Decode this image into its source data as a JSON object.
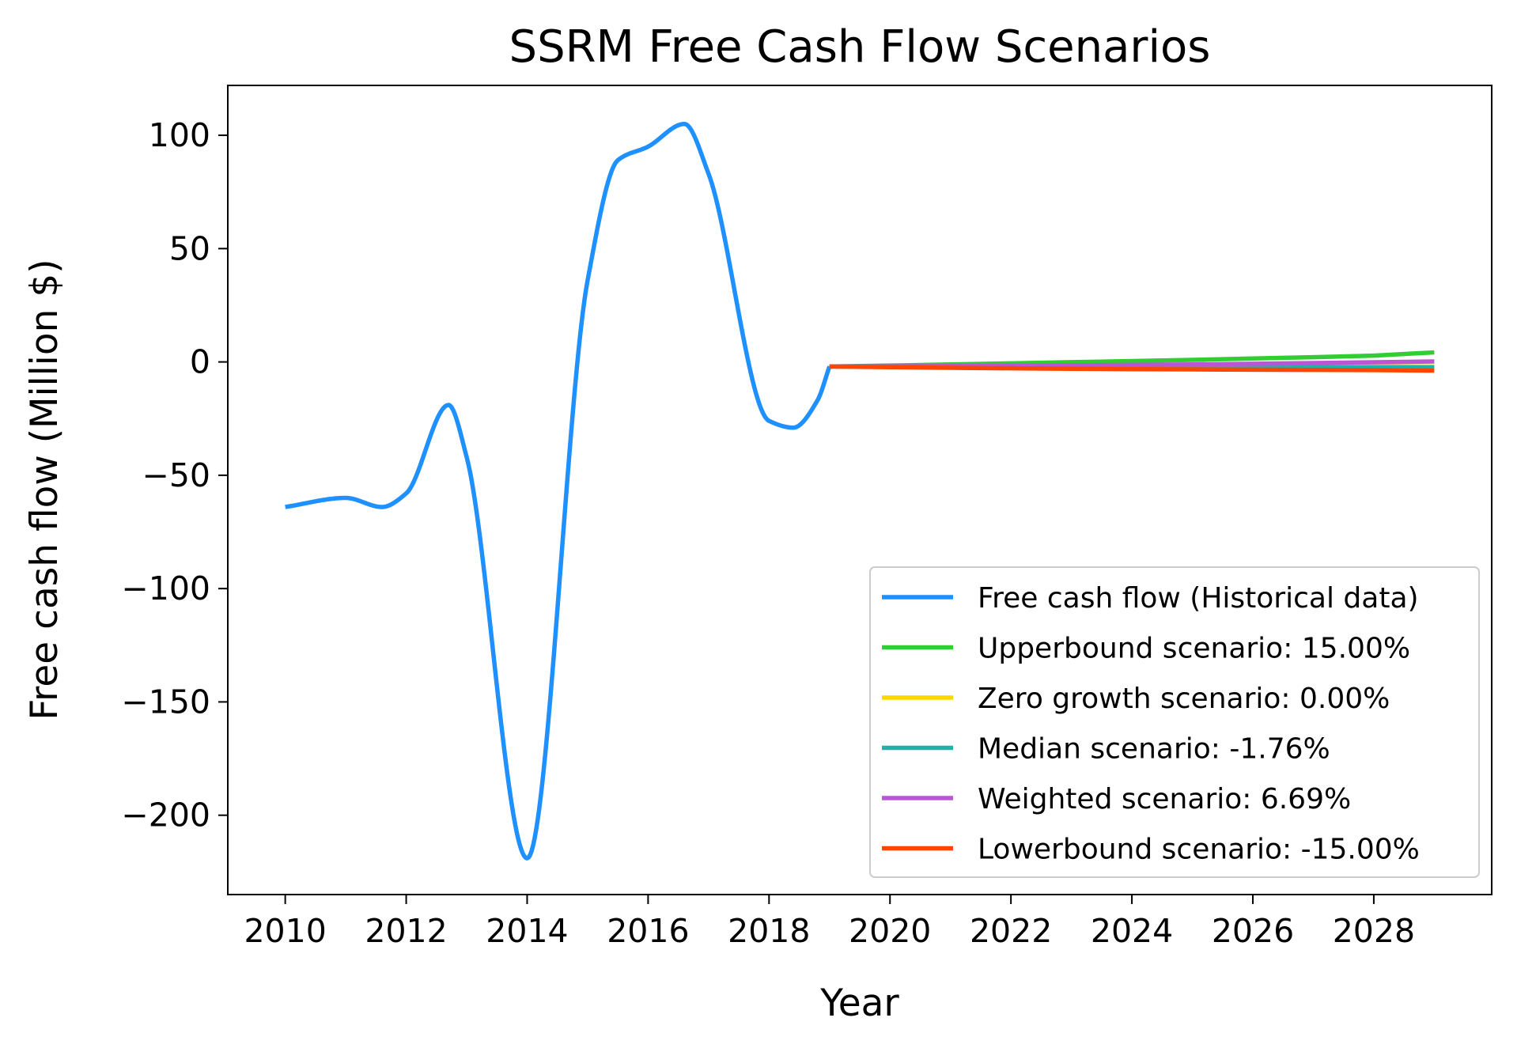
{
  "chart_data": {
    "type": "line",
    "title": "SSRM Free Cash Flow Scenarios",
    "xlabel": "Year",
    "ylabel": "Free cash flow (Million $)",
    "xlim": [
      2009.05,
      2029.95
    ],
    "ylim": [
      -235,
      122
    ],
    "xticks": [
      2010,
      2012,
      2014,
      2016,
      2018,
      2020,
      2022,
      2024,
      2026,
      2028
    ],
    "yticks": [
      100,
      50,
      0,
      -50,
      -100,
      -150,
      -200
    ],
    "ytick_labels": [
      "100",
      "50",
      "0",
      "−50",
      "−100",
      "−150",
      "−200"
    ],
    "grid": false,
    "legend_position": "lower-right",
    "series": [
      {
        "name": "Free cash flow (Historical data)",
        "color": "#1e90ff",
        "smooth": true,
        "x": [
          2010,
          2011,
          2011.6,
          2012,
          2012.7,
          2013,
          2014,
          2015,
          2015.5,
          2016,
          2016.6,
          2017,
          2018,
          2018.4,
          2018.8,
          2019
        ],
        "y": [
          -64,
          -60,
          -64,
          -58,
          -19,
          -42,
          -219,
          36,
          89,
          95,
          105,
          83,
          -26,
          -29,
          -17,
          -2
        ]
      },
      {
        "name": "Upperbound scenario: 15.00%",
        "color": "#32cd32",
        "x": [
          2019,
          2020,
          2021,
          2022,
          2023,
          2024,
          2025,
          2026,
          2027,
          2028,
          2029
        ],
        "y": [
          -2,
          -1.6,
          -1.1,
          -0.6,
          -0.1,
          0.4,
          0.9,
          1.5,
          2.1,
          2.8,
          4.2
        ]
      },
      {
        "name": "Zero growth scenario: 0.00%",
        "color": "#ffd700",
        "x": [
          2019,
          2029
        ],
        "y": [
          -2,
          -2
        ]
      },
      {
        "name": "Median scenario: -1.76%",
        "color": "#20b2aa",
        "x": [
          2019,
          2021,
          2023,
          2025,
          2027,
          2029
        ],
        "y": [
          -2,
          -2.1,
          -2.2,
          -2.3,
          -2.3,
          -2.4
        ]
      },
      {
        "name": "Weighted scenario: 6.69%",
        "color": "#ba55d3",
        "x": [
          2019,
          2021,
          2023,
          2025,
          2027,
          2029
        ],
        "y": [
          -2,
          -1.8,
          -1.5,
          -1.1,
          -0.5,
          0.2
        ]
      },
      {
        "name": "Lowerbound scenario: -15.00%",
        "color": "#ff4500",
        "x": [
          2019,
          2020,
          2021,
          2022,
          2023,
          2024,
          2025,
          2026,
          2027,
          2028,
          2029
        ],
        "y": [
          -2,
          -2.3,
          -2.6,
          -2.8,
          -3.0,
          -3.2,
          -3.3,
          -3.4,
          -3.5,
          -3.6,
          -3.8
        ]
      }
    ]
  }
}
